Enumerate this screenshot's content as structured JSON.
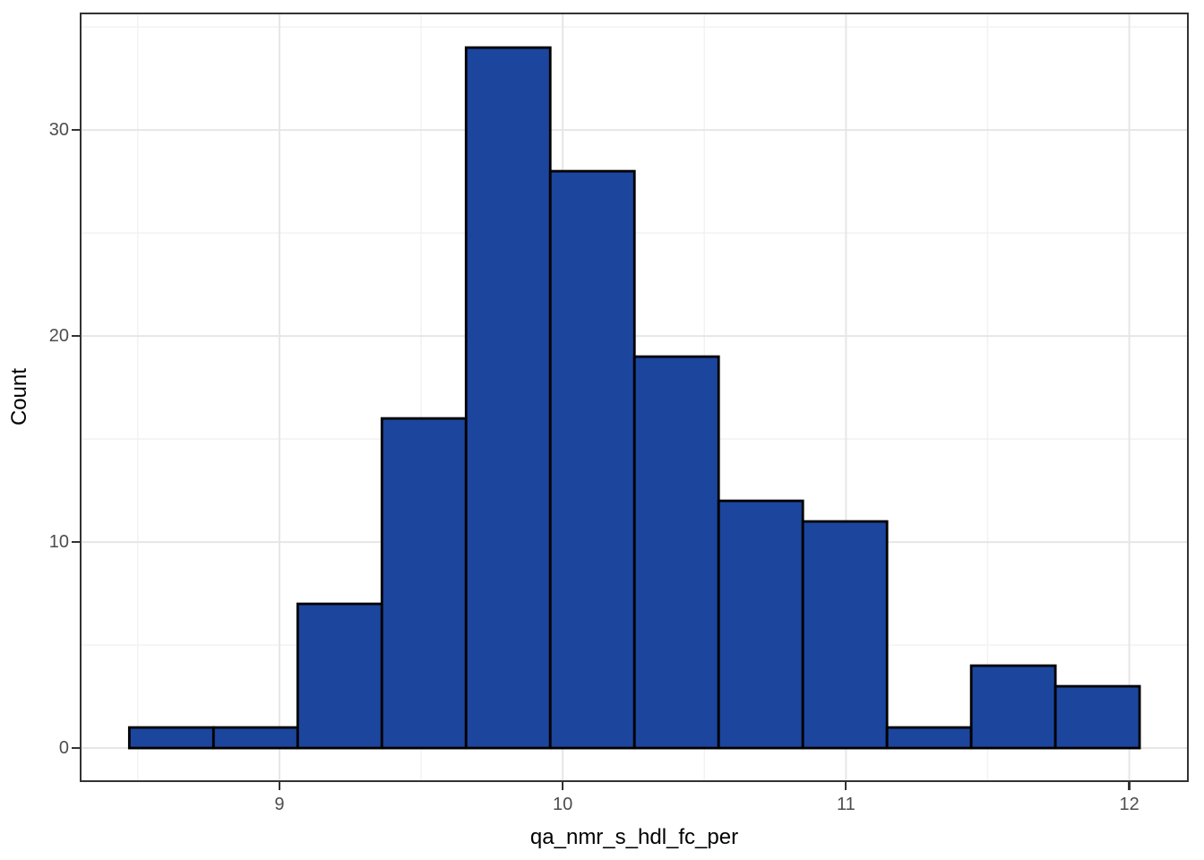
{
  "figure": {
    "background": "#ffffff"
  },
  "chart_data": {
    "type": "bar",
    "subtype": "histogram",
    "title": "",
    "xlabel": "qa_nmr_s_hdl_fc_per",
    "ylabel": "Count",
    "bin_start": 8.47,
    "bin_width": 0.2972,
    "counts": [
      1,
      1,
      7,
      16,
      34,
      28,
      19,
      12,
      11,
      1,
      4,
      3
    ],
    "bin_edges": [
      8.47,
      8.77,
      9.07,
      9.36,
      9.66,
      9.96,
      10.25,
      10.55,
      10.85,
      11.15,
      11.44,
      11.74,
      12.04
    ],
    "total_count": 137,
    "x_ticks": [
      9,
      10,
      11,
      12
    ],
    "y_ticks": [
      0,
      10,
      20,
      30
    ],
    "x_minor_ticks": [
      8.5,
      9.5,
      10.5,
      11.5
    ],
    "y_minor_ticks": [
      5,
      15,
      25,
      35
    ],
    "x_domain": [
      8.295,
      12.21
    ],
    "y_domain": [
      -1.65,
      35.7
    ],
    "grid": true,
    "legend_position": "none",
    "style": {
      "bar_fill": "#1c459d",
      "bar_stroke": "#000000",
      "bar_stroke_width": 2.8,
      "panel_border": "#333333",
      "grid_major": "#e6e6e6",
      "grid_minor": "#f1f1f1",
      "tick_color": "#333333",
      "tick_label_color": "#4d4d4d",
      "axis_title_color": "#000000"
    }
  }
}
